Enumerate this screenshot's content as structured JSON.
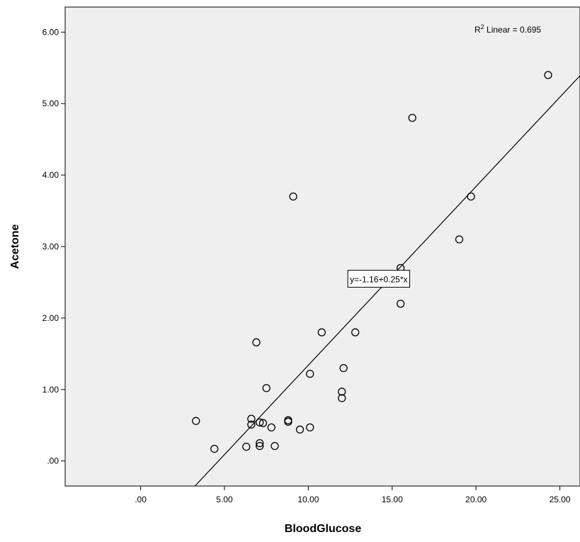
{
  "chart_data": {
    "type": "scatter",
    "xlabel": "BloodGlucose",
    "ylabel": "Acetone",
    "xlim": [
      -4.5,
      26.2
    ],
    "ylim": [
      -0.35,
      6.35
    ],
    "x_ticks": [
      0,
      5,
      10,
      15,
      20,
      25
    ],
    "x_tick_labels": [
      ".00",
      "5.00",
      "10.00",
      "15.00",
      "20.00",
      "25.00"
    ],
    "y_ticks": [
      0,
      1,
      2,
      3,
      4,
      5,
      6
    ],
    "y_tick_labels": [
      ".00",
      "1.00",
      "2.00",
      "3.00",
      "4.00",
      "5.00",
      "6.00"
    ],
    "grid": false,
    "points": [
      {
        "x": 3.3,
        "y": 0.56
      },
      {
        "x": 4.4,
        "y": 0.17
      },
      {
        "x": 6.3,
        "y": 0.2
      },
      {
        "x": 6.6,
        "y": 0.59
      },
      {
        "x": 6.6,
        "y": 0.51
      },
      {
        "x": 6.9,
        "y": 1.66
      },
      {
        "x": 7.1,
        "y": 0.54
      },
      {
        "x": 7.1,
        "y": 0.25
      },
      {
        "x": 7.1,
        "y": 0.21
      },
      {
        "x": 7.3,
        "y": 0.53
      },
      {
        "x": 7.5,
        "y": 1.02
      },
      {
        "x": 7.8,
        "y": 0.47
      },
      {
        "x": 8.0,
        "y": 0.21
      },
      {
        "x": 8.8,
        "y": 0.57
      },
      {
        "x": 8.8,
        "y": 0.55
      },
      {
        "x": 9.1,
        "y": 3.7
      },
      {
        "x": 9.5,
        "y": 0.44
      },
      {
        "x": 10.1,
        "y": 0.47
      },
      {
        "x": 10.1,
        "y": 1.22
      },
      {
        "x": 10.8,
        "y": 1.8
      },
      {
        "x": 12.0,
        "y": 0.97
      },
      {
        "x": 12.0,
        "y": 0.88
      },
      {
        "x": 12.1,
        "y": 1.3
      },
      {
        "x": 12.8,
        "y": 1.8
      },
      {
        "x": 15.5,
        "y": 2.2
      },
      {
        "x": 15.5,
        "y": 2.7
      },
      {
        "x": 16.2,
        "y": 4.8
      },
      {
        "x": 19.0,
        "y": 3.1
      },
      {
        "x": 19.7,
        "y": 3.7
      },
      {
        "x": 24.3,
        "y": 5.4
      }
    ],
    "fit_line": {
      "intercept": -1.16,
      "slope": 0.25,
      "label": "y=-1.16+0.25*x",
      "label_at": {
        "x": 14.2,
        "y": 2.55
      }
    },
    "r2_label": {
      "prefix": "R",
      "sup": "2",
      "rest": " Linear = 0.695"
    },
    "colors": {
      "plot_bg": "#efefef",
      "marker_stroke": "#000000",
      "line": "#000000"
    }
  }
}
